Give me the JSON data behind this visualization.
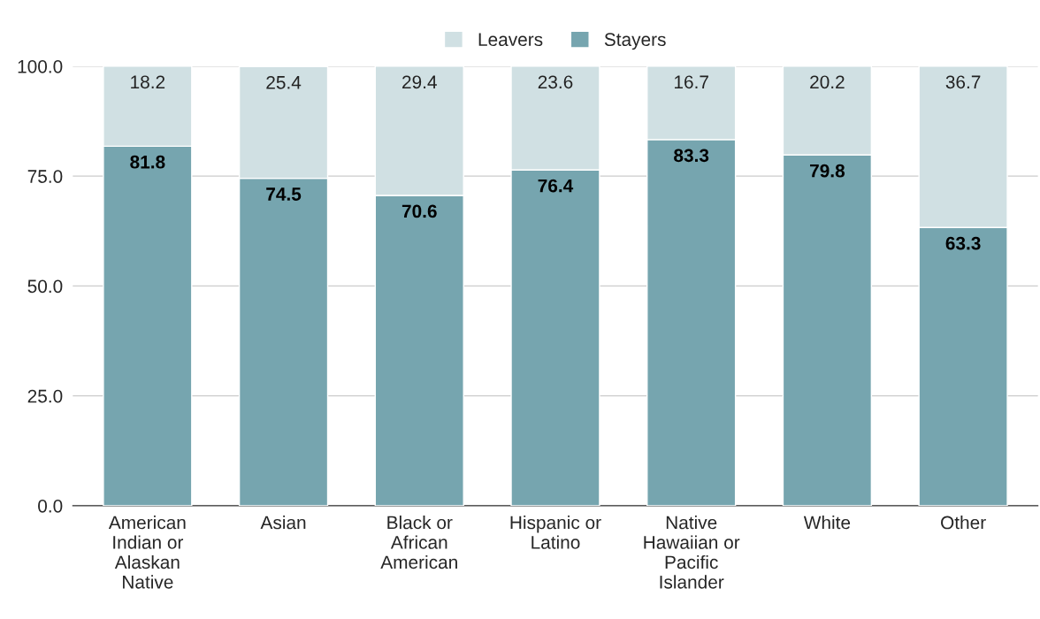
{
  "chart_data": {
    "type": "bar",
    "stacked": true,
    "categories": [
      "American Indian or Alaskan Native",
      "Asian",
      "Black or African American",
      "Hispanic or Latino",
      "Native Hawaiian or Pacific Islander",
      "White",
      "Other"
    ],
    "series": [
      {
        "name": "Stayers",
        "color": "#76a5af",
        "values": [
          81.8,
          74.5,
          70.6,
          76.4,
          83.3,
          79.8,
          63.3
        ]
      },
      {
        "name": "Leavers",
        "color": "#d0e0e3",
        "values": [
          18.2,
          25.4,
          29.4,
          23.6,
          16.7,
          20.2,
          36.7
        ]
      }
    ],
    "ylim": [
      0,
      100
    ],
    "yticks": [
      {
        "value": 0,
        "label": "0.0"
      },
      {
        "value": 25,
        "label": "25.0"
      },
      {
        "value": 50,
        "label": "50.0"
      },
      {
        "value": 75,
        "label": "75.0"
      },
      {
        "value": 100,
        "label": "100.0"
      }
    ],
    "grid": "y",
    "legend": "top",
    "data_labels": true
  }
}
